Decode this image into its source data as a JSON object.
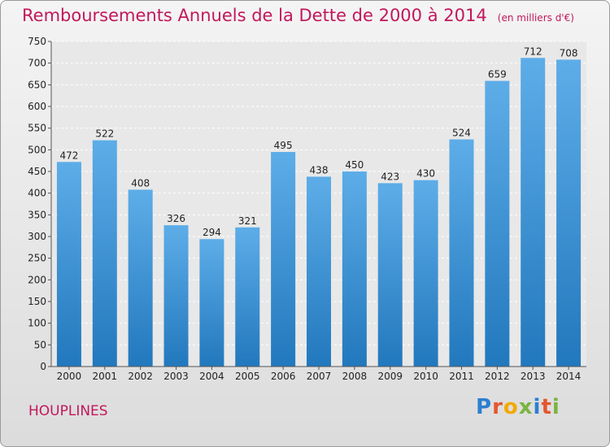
{
  "chart_data": {
    "type": "bar",
    "title": "Remboursements Annuels de la Dette de 2000 à 2014",
    "unit_label": "(en milliers d'€)",
    "categories": [
      "2000",
      "2001",
      "2002",
      "2003",
      "2004",
      "2005",
      "2006",
      "2007",
      "2008",
      "2009",
      "2010",
      "2011",
      "2012",
      "2013",
      "2014"
    ],
    "values": [
      472,
      522,
      408,
      326,
      294,
      321,
      495,
      438,
      450,
      423,
      430,
      524,
      659,
      712,
      708
    ],
    "ylim": [
      0,
      750
    ],
    "yticks": [
      0,
      50,
      100,
      150,
      200,
      250,
      300,
      350,
      400,
      450,
      500,
      550,
      600,
      650,
      700,
      750
    ],
    "xlabel": "",
    "ylabel": "",
    "grid": true,
    "colors": {
      "bar_light": "#5dade8",
      "bar_dark": "#2278bd",
      "title": "#c2185b"
    }
  },
  "footer": {
    "city": "HOUPLINES"
  },
  "logo": {
    "letters": [
      "P",
      "r",
      "o",
      "x",
      "i",
      "t",
      "i"
    ],
    "colors": [
      "#2c7fd0",
      "#e4572e",
      "#f2a900",
      "#7cb342",
      "#2c7fd0",
      "#e4572e",
      "#7cb342"
    ]
  }
}
